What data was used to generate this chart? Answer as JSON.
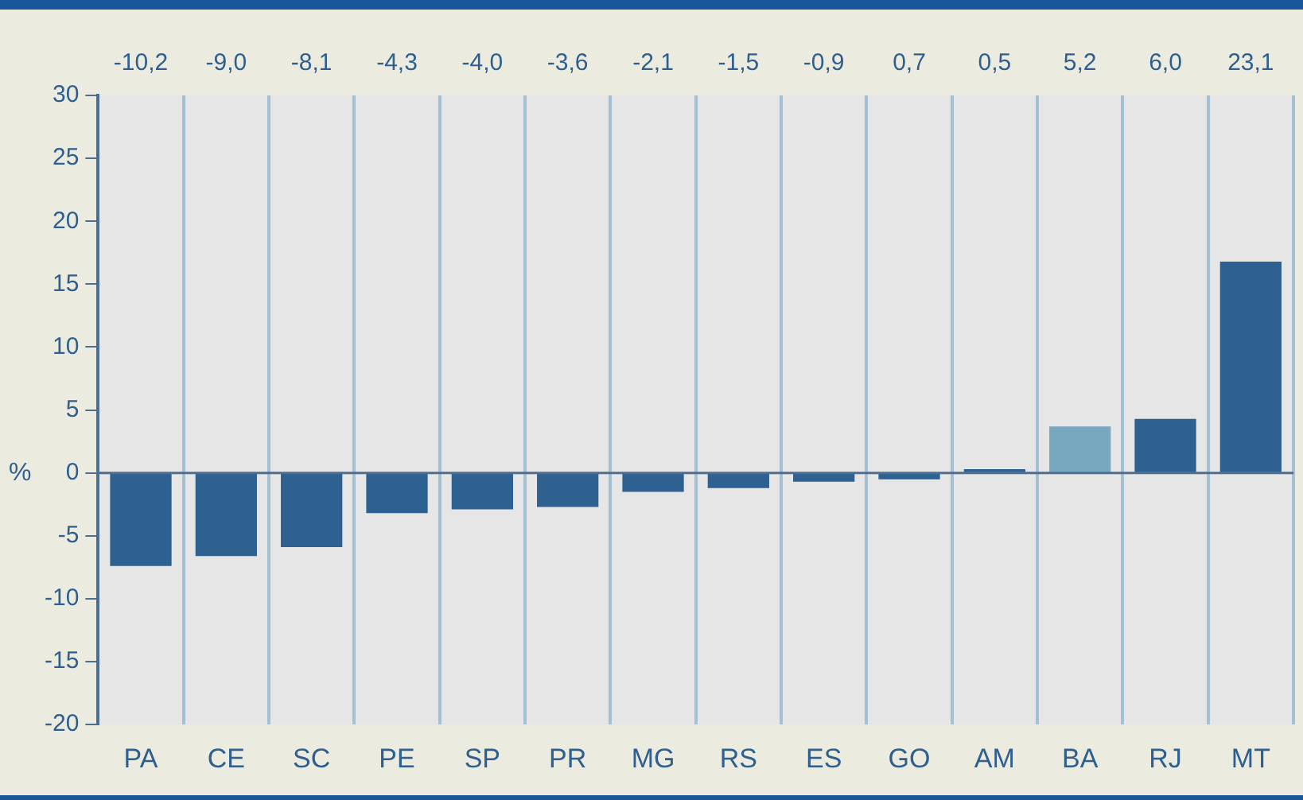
{
  "chart_data": {
    "type": "bar",
    "ylabel": "%",
    "categories": [
      "PA",
      "CE",
      "SC",
      "PE",
      "SP",
      "PR",
      "MG",
      "RS",
      "ES",
      "GO",
      "AM",
      "BA",
      "RJ",
      "MT"
    ],
    "values": [
      -7.4,
      -6.6,
      -5.9,
      -3.2,
      -2.9,
      -2.7,
      -1.5,
      -1.2,
      -0.7,
      -0.5,
      0.3,
      3.7,
      4.3,
      16.8
    ],
    "colors": [
      "#2e6190",
      "#2e6190",
      "#2e6190",
      "#2e6190",
      "#2e6190",
      "#2e6190",
      "#2e6190",
      "#2e6190",
      "#2e6190",
      "#2e6190",
      "#2e6190",
      "#78a8bf",
      "#2e6190",
      "#2e6190"
    ],
    "ylim": [
      -20,
      30
    ],
    "yticks": [
      -20,
      -15,
      -10,
      -5,
      0,
      5,
      10,
      15,
      20,
      25,
      30
    ],
    "grid": "x",
    "legend": false,
    "ref_lines": [
      {
        "axis": "y",
        "value": 0,
        "color": "#4a6f93"
      }
    ],
    "annotations": [
      "-10,2",
      "-9,0",
      "-8,1",
      "-4,3",
      "-4,0",
      "-3,6",
      "-2,1",
      "-1,5",
      "-0,9",
      "0,7",
      "0,5",
      "5,2",
      "6,0",
      "23,1"
    ]
  }
}
